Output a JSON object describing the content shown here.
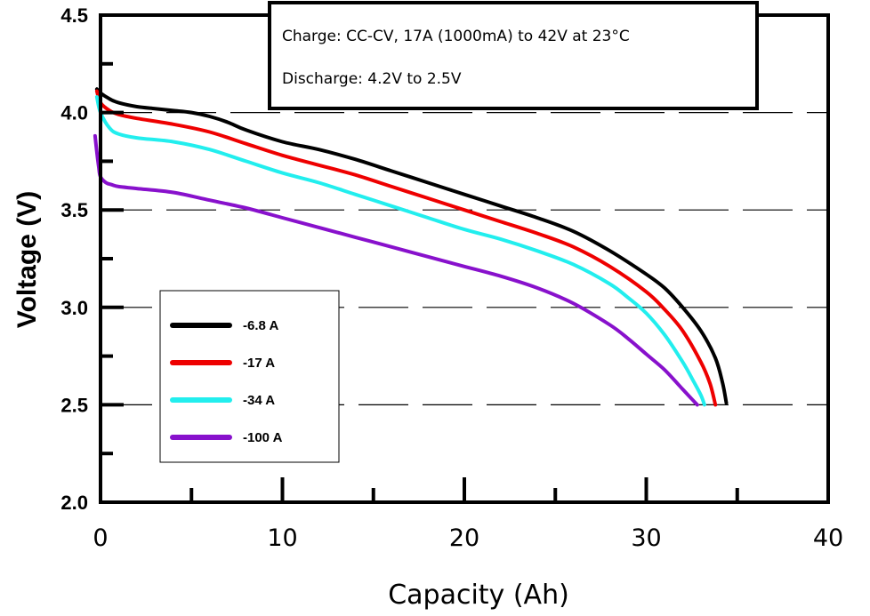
{
  "chart_data": {
    "type": "line",
    "title": "",
    "xlabel": "Capacity (Ah)",
    "ylabel": "Voltage (V)",
    "xlim": [
      0,
      40
    ],
    "ylim": [
      2.0,
      4.5
    ],
    "xticks": [
      0,
      10,
      20,
      30,
      40
    ],
    "xtick_labels": [
      "0",
      "10",
      "20",
      "30",
      "40"
    ],
    "yticks": [
      2.0,
      2.5,
      3.0,
      3.5,
      4.0,
      4.5
    ],
    "ytick_labels": [
      "2.0",
      "2.5",
      "3.0",
      "3.5",
      "4.0",
      "4.5"
    ],
    "grid": "dashed horizontal lines at 2.5, 3.0, 3.5, 4.0",
    "legend_position": "lower-left",
    "annotations": [
      "Charge: CC-CV, 17A (1000mA) to 42V at 23°C",
      "Discharge: 4.2V to 2.5V"
    ],
    "series": [
      {
        "name": "-6.8 A",
        "color": "#000000",
        "x": [
          -0.2,
          0,
          0.5,
          1,
          2,
          3,
          4,
          5,
          6,
          7,
          8,
          10,
          12,
          14,
          16,
          18,
          20,
          22,
          24,
          26,
          28,
          30,
          31,
          32,
          33,
          33.8,
          34.2,
          34.4
        ],
        "y": [
          4.12,
          4.1,
          4.07,
          4.05,
          4.03,
          4.02,
          4.01,
          4.0,
          3.98,
          3.95,
          3.91,
          3.85,
          3.81,
          3.76,
          3.7,
          3.64,
          3.58,
          3.52,
          3.46,
          3.39,
          3.29,
          3.17,
          3.1,
          3.0,
          2.88,
          2.74,
          2.61,
          2.51
        ]
      },
      {
        "name": "-17 A",
        "color": "#ee0000",
        "x": [
          -0.2,
          0,
          0.5,
          1,
          2,
          4,
          6,
          8,
          10,
          12,
          14,
          16,
          18,
          20,
          22,
          24,
          26,
          28,
          30,
          31,
          32,
          33,
          33.5,
          33.8
        ],
        "y": [
          4.11,
          4.05,
          4.01,
          3.99,
          3.97,
          3.94,
          3.9,
          3.84,
          3.78,
          3.73,
          3.68,
          3.62,
          3.56,
          3.5,
          3.44,
          3.38,
          3.31,
          3.21,
          3.08,
          2.99,
          2.88,
          2.72,
          2.61,
          2.5
        ]
      },
      {
        "name": "-34 A",
        "color": "#22eeee",
        "x": [
          -0.2,
          0,
          0.5,
          1,
          2,
          4,
          6,
          8,
          10,
          12,
          14,
          16,
          18,
          20,
          22,
          24,
          26,
          28,
          29,
          30,
          31,
          32,
          32.6,
          33.0,
          33.2
        ],
        "y": [
          4.08,
          4.0,
          3.92,
          3.89,
          3.87,
          3.85,
          3.81,
          3.75,
          3.69,
          3.64,
          3.58,
          3.52,
          3.46,
          3.4,
          3.35,
          3.29,
          3.22,
          3.12,
          3.05,
          2.97,
          2.86,
          2.72,
          2.62,
          2.55,
          2.5
        ]
      },
      {
        "name": "-100 A",
        "color": "#8811cc",
        "x": [
          -0.3,
          -0.1,
          0,
          0.3,
          0.6,
          1,
          2,
          4,
          6,
          8,
          10,
          12,
          14,
          16,
          18,
          20,
          22,
          24,
          26,
          28,
          29,
          30,
          31,
          32,
          32.5,
          32.8
        ],
        "y": [
          3.88,
          3.72,
          3.67,
          3.64,
          3.63,
          3.62,
          3.61,
          3.59,
          3.55,
          3.51,
          3.46,
          3.41,
          3.36,
          3.31,
          3.26,
          3.21,
          3.16,
          3.1,
          3.02,
          2.91,
          2.84,
          2.76,
          2.68,
          2.58,
          2.53,
          2.5
        ]
      }
    ]
  }
}
